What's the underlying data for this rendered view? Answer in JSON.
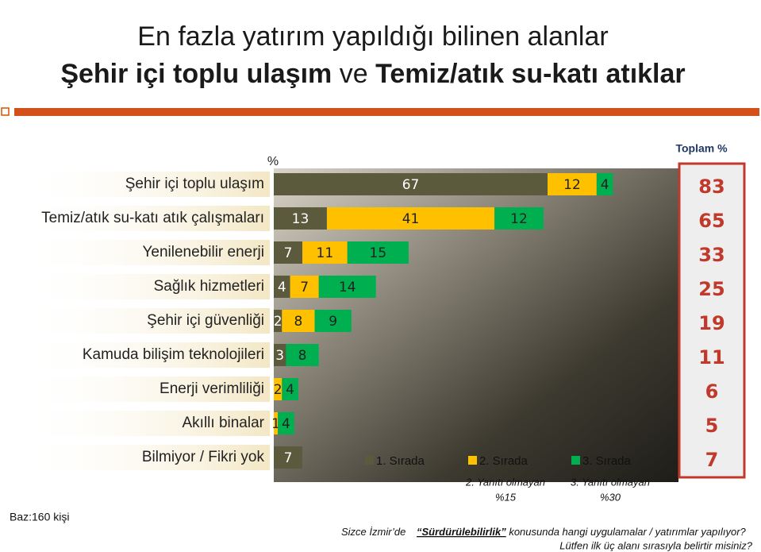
{
  "chart_data": {
    "type": "bar",
    "orientation": "horizontal",
    "title": "En fazla yatırım yapıldığı bilinen alanlar",
    "subtitle_parts": [
      "Şehir içi toplu ulaşım",
      "ve",
      "Temiz/atık su-katı atıklar"
    ],
    "unit_label": "%",
    "categories": [
      "Şehir içi toplu ulaşım",
      "Temiz/atık su-katı atık çalışmaları",
      "Yenilenebilir enerji",
      "Sağlık hizmetleri",
      "Şehir içi güvenliği",
      "Kamuda bilişim teknolojileri",
      "Enerji verimliliği",
      "Akıllı binalar",
      "Bilmiyor / Fikri yok"
    ],
    "series": [
      {
        "name": "1. Sırada",
        "color": "#5b5a3c",
        "text_color": "#ffffff",
        "values": [
          67,
          13,
          7,
          4,
          2,
          3,
          null,
          null,
          7
        ]
      },
      {
        "name": "2. Sırada",
        "color": "#ffc000",
        "text_color": "#222222",
        "values": [
          12,
          41,
          11,
          7,
          8,
          null,
          2,
          1,
          null
        ]
      },
      {
        "name": "3. Sırada",
        "color": "#00b050",
        "text_color": "#222222",
        "values": [
          4,
          12,
          15,
          14,
          9,
          8,
          4,
          4,
          null
        ]
      }
    ],
    "xlim": [
      0,
      100
    ],
    "totals_title": "Toplam %",
    "totals": [
      83,
      65,
      33,
      25,
      19,
      11,
      6,
      5,
      7
    ],
    "notes": [
      [
        "2. Yanıtı olmayan",
        "%15"
      ],
      [
        "3. Yanıtı olmayan",
        "%30"
      ]
    ],
    "base": "Baz:160 kişi",
    "question": [
      "Sizce İzmir’de",
      "“Sürdürülebilirlik”",
      "konusunda hangi uygulamalar / yatırımlar yapılıyor?",
      "Lütfen ilk üç alanı sırasıyla belirtir misiniz?"
    ]
  }
}
